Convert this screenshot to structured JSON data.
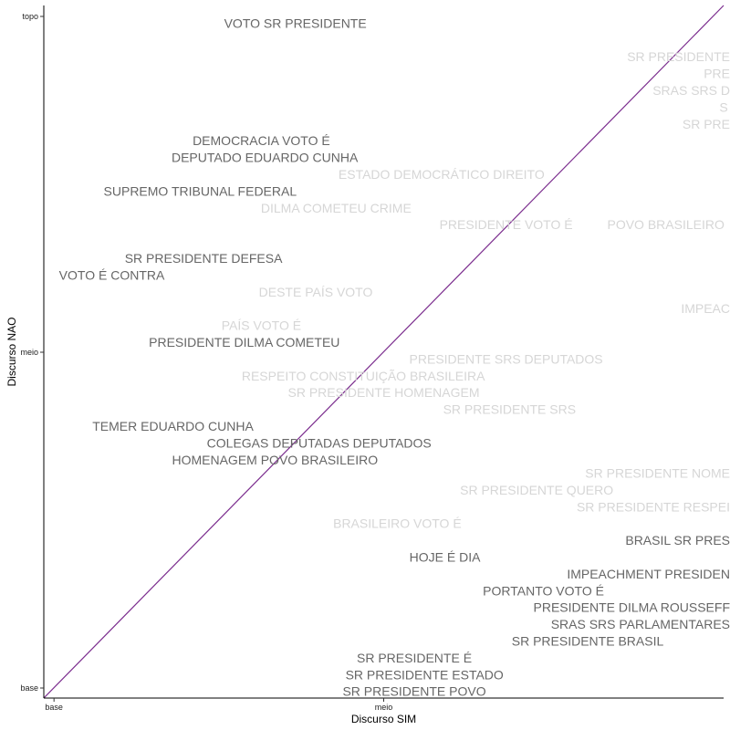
{
  "chart_data": {
    "type": "scatter",
    "title": "",
    "xlabel": "Discurso SIM",
    "ylabel": "Discurso NAO",
    "xlim": [
      0,
      2
    ],
    "ylim": [
      0,
      2
    ],
    "x_ticks": [
      {
        "value": 0.03,
        "label": "base"
      },
      {
        "value": 1.0,
        "label": "meio"
      }
    ],
    "y_ticks": [
      {
        "value": 0.0,
        "label": "base"
      },
      {
        "value": 1.0,
        "label": "meio"
      },
      {
        "value": 2.0,
        "label": "topo"
      }
    ],
    "reference_line": {
      "x": [
        0,
        2
      ],
      "y": [
        0,
        2
      ],
      "color": "#7b2d8e"
    },
    "colors": {
      "strong": "#666666",
      "faded": "#d6d6d6",
      "axis": "#000000"
    },
    "grid": false,
    "legend": "none",
    "points": [
      {
        "label": "VOTO SR PRESIDENTE",
        "x": 0.74,
        "y": 1.98,
        "faded": false
      },
      {
        "label": "SR PRESIDENTE",
        "x": 2.0,
        "y": 1.88,
        "faded": true
      },
      {
        "label": "PRE",
        "x": 2.0,
        "y": 1.83,
        "faded": true
      },
      {
        "label": "SRAS SRS D",
        "x": 2.0,
        "y": 1.78,
        "faded": true
      },
      {
        "label": "S",
        "x": 2.0,
        "y": 1.73,
        "faded": true
      },
      {
        "label": "SR PRE",
        "x": 2.0,
        "y": 1.68,
        "faded": true
      },
      {
        "label": "DEMOCRACIA VOTO É",
        "x": 0.64,
        "y": 1.63,
        "faded": false
      },
      {
        "label": "DEPUTADO EDUARDO CUNHA",
        "x": 0.65,
        "y": 1.58,
        "faded": false
      },
      {
        "label": "ESTADO DEMOCRÁTICO DIREITO",
        "x": 1.17,
        "y": 1.53,
        "faded": true
      },
      {
        "label": "SUPREMO TRIBUNAL FEDERAL",
        "x": 0.46,
        "y": 1.48,
        "faded": false
      },
      {
        "label": "DILMA COMETEU CRIME",
        "x": 0.86,
        "y": 1.43,
        "faded": true
      },
      {
        "label": "POVO BRASILEIRO",
        "x": 1.83,
        "y": 1.38,
        "faded": true
      },
      {
        "label": "PRESIDENTE VOTO É",
        "x": 1.36,
        "y": 1.38,
        "faded": true
      },
      {
        "label": "SR PRESIDENTE DEFESA",
        "x": 0.47,
        "y": 1.28,
        "faded": false
      },
      {
        "label": "VOTO É CONTRA",
        "x": 0.2,
        "y": 1.23,
        "faded": false
      },
      {
        "label": "DESTE PAÍS VOTO",
        "x": 0.8,
        "y": 1.18,
        "faded": true
      },
      {
        "label": "IMPEAC",
        "x": 2.0,
        "y": 1.13,
        "faded": true
      },
      {
        "label": "PAÍS VOTO É",
        "x": 0.64,
        "y": 1.08,
        "faded": true
      },
      {
        "label": "PRESIDENTE DILMA COMETEU",
        "x": 0.59,
        "y": 1.03,
        "faded": false
      },
      {
        "label": "PRESIDENTE SRS DEPUTADOS",
        "x": 1.36,
        "y": 0.98,
        "faded": true
      },
      {
        "label": "RESPEITO CONSTITUIÇÃO BRASILEIRA",
        "x": 0.94,
        "y": 0.93,
        "faded": true
      },
      {
        "label": "SR PRESIDENTE HOMENAGEM",
        "x": 1.0,
        "y": 0.88,
        "faded": true
      },
      {
        "label": "SR PRESIDENTE SRS",
        "x": 1.37,
        "y": 0.83,
        "faded": true
      },
      {
        "label": "TEMER EDUARDO CUNHA",
        "x": 0.38,
        "y": 0.78,
        "faded": false
      },
      {
        "label": "COLEGAS DEPUTADAS DEPUTADOS",
        "x": 0.81,
        "y": 0.73,
        "faded": false
      },
      {
        "label": "HOMENAGEM POVO BRASILEIRO",
        "x": 0.68,
        "y": 0.68,
        "faded": false
      },
      {
        "label": "SR PRESIDENTE NOME",
        "x": 1.93,
        "y": 0.64,
        "faded": true
      },
      {
        "label": "SR PRESIDENTE QUERO",
        "x": 1.45,
        "y": 0.59,
        "faded": true
      },
      {
        "label": "SR PRESIDENTE RESPEI",
        "x": 1.9,
        "y": 0.54,
        "faded": true
      },
      {
        "label": "BRASILEIRO VOTO É",
        "x": 1.04,
        "y": 0.49,
        "faded": true
      },
      {
        "label": "BRASIL SR PRES",
        "x": 1.98,
        "y": 0.44,
        "faded": false
      },
      {
        "label": "HOJE É DIA",
        "x": 1.18,
        "y": 0.39,
        "faded": false
      },
      {
        "label": "IMPEACHMENT PRESIDEN",
        "x": 1.91,
        "y": 0.34,
        "faded": false
      },
      {
        "label": "PORTANTO VOTO É",
        "x": 1.47,
        "y": 0.29,
        "faded": false
      },
      {
        "label": "PRESIDENTE DILMA ROUSSEFF",
        "x": 1.8,
        "y": 0.24,
        "faded": false
      },
      {
        "label": "SRAS SRS PARLAMENTARES",
        "x": 1.8,
        "y": 0.19,
        "faded": false
      },
      {
        "label": "SR PRESIDENTE BRASIL",
        "x": 1.6,
        "y": 0.14,
        "faded": false
      },
      {
        "label": "SR PRESIDENTE É",
        "x": 1.09,
        "y": 0.09,
        "faded": false
      },
      {
        "label": "SR PRESIDENTE ESTADO",
        "x": 1.12,
        "y": 0.04,
        "faded": false
      },
      {
        "label": "SR PRESIDENTE POVO",
        "x": 1.09,
        "y": -0.01,
        "faded": false
      }
    ]
  }
}
